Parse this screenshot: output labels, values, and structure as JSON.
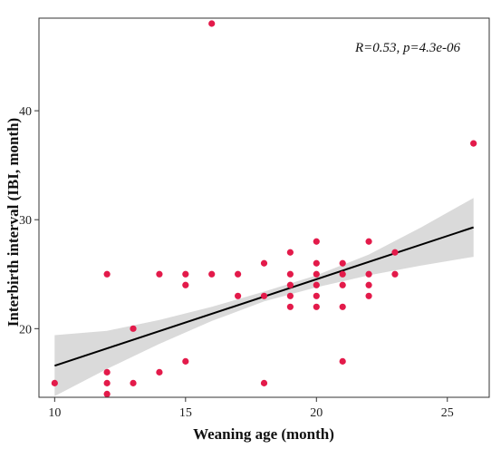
{
  "chart_data": {
    "type": "scatter",
    "xlabel": "Weaning age (month)",
    "ylabel": "Interbirth interval (IBI, month)",
    "annotation": "R=0.53, p=4.3e-06",
    "xlim": [
      9.4,
      26.6
    ],
    "ylim": [
      13.7,
      48.5
    ],
    "x_ticks": [
      10,
      15,
      20,
      25
    ],
    "y_ticks": [
      20,
      30,
      40
    ],
    "grid": false,
    "point_color": "#e31a4a",
    "fit_line_color": "#000000",
    "confidence_band_color": "#d3d3d3",
    "points": [
      {
        "x": 10,
        "y": 15
      },
      {
        "x": 12,
        "y": 25
      },
      {
        "x": 12,
        "y": 16
      },
      {
        "x": 12,
        "y": 15
      },
      {
        "x": 12,
        "y": 14
      },
      {
        "x": 13,
        "y": 20
      },
      {
        "x": 13,
        "y": 15
      },
      {
        "x": 14,
        "y": 25
      },
      {
        "x": 14,
        "y": 16
      },
      {
        "x": 15,
        "y": 25
      },
      {
        "x": 15,
        "y": 24
      },
      {
        "x": 15,
        "y": 17
      },
      {
        "x": 16,
        "y": 48
      },
      {
        "x": 16,
        "y": 25
      },
      {
        "x": 17,
        "y": 25
      },
      {
        "x": 17,
        "y": 23
      },
      {
        "x": 18,
        "y": 26
      },
      {
        "x": 18,
        "y": 23
      },
      {
        "x": 18,
        "y": 15
      },
      {
        "x": 19,
        "y": 27
      },
      {
        "x": 19,
        "y": 25
      },
      {
        "x": 19,
        "y": 24
      },
      {
        "x": 19,
        "y": 23
      },
      {
        "x": 19,
        "y": 22
      },
      {
        "x": 20,
        "y": 28
      },
      {
        "x": 20,
        "y": 26
      },
      {
        "x": 20,
        "y": 25
      },
      {
        "x": 20,
        "y": 24
      },
      {
        "x": 20,
        "y": 23
      },
      {
        "x": 20,
        "y": 22
      },
      {
        "x": 21,
        "y": 26
      },
      {
        "x": 21,
        "y": 25
      },
      {
        "x": 21,
        "y": 24
      },
      {
        "x": 21,
        "y": 22
      },
      {
        "x": 21,
        "y": 17
      },
      {
        "x": 22,
        "y": 28
      },
      {
        "x": 22,
        "y": 25
      },
      {
        "x": 22,
        "y": 24
      },
      {
        "x": 22,
        "y": 23
      },
      {
        "x": 23,
        "y": 27
      },
      {
        "x": 23,
        "y": 25
      },
      {
        "x": 26,
        "y": 37
      }
    ],
    "fit_line": {
      "x": [
        10,
        26
      ],
      "y": [
        16.6,
        29.3
      ]
    },
    "confidence_band": {
      "x": [
        10,
        12,
        14,
        16,
        18,
        20,
        22,
        24,
        26
      ],
      "lower": [
        13.8,
        16.3,
        18.6,
        20.7,
        22.5,
        23.8,
        24.9,
        25.8,
        26.6
      ],
      "upper": [
        19.4,
        19.8,
        20.8,
        22.0,
        23.4,
        24.9,
        26.8,
        29.3,
        32.0
      ]
    }
  }
}
